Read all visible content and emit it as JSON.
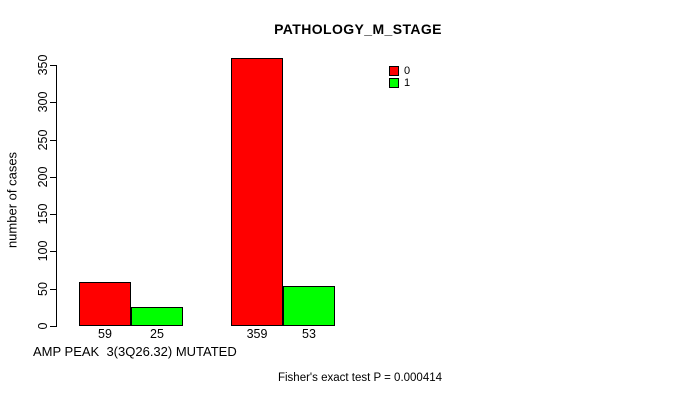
{
  "chart_data": {
    "type": "bar",
    "title": "PATHOLOGY_M_STAGE",
    "ylabel": "number of cases",
    "xlabel": "AMP PEAK  3(3Q26.32) MUTATED",
    "ylim": [
      0,
      350
    ],
    "yticks": [
      0,
      50,
      100,
      150,
      200,
      250,
      300,
      350
    ],
    "grid": false,
    "categories": [
      "",
      ""
    ],
    "series": [
      {
        "name": "0",
        "color": "#ff0000",
        "values": [
          59,
          359
        ]
      },
      {
        "name": "1",
        "color": "#00ff00",
        "values": [
          25,
          53
        ]
      }
    ],
    "bar_value_labels": [
      "59",
      "25",
      "359",
      "53"
    ],
    "legend": {
      "position": "top-right",
      "entries": [
        {
          "label": "0",
          "color": "#ff0000"
        },
        {
          "label": "1",
          "color": "#00ff00"
        }
      ]
    },
    "annotation": "Fisher's exact test P = 0.000414",
    "colors": {
      "axis": "#000000",
      "text": "#000000",
      "background": "#ffffff"
    }
  }
}
